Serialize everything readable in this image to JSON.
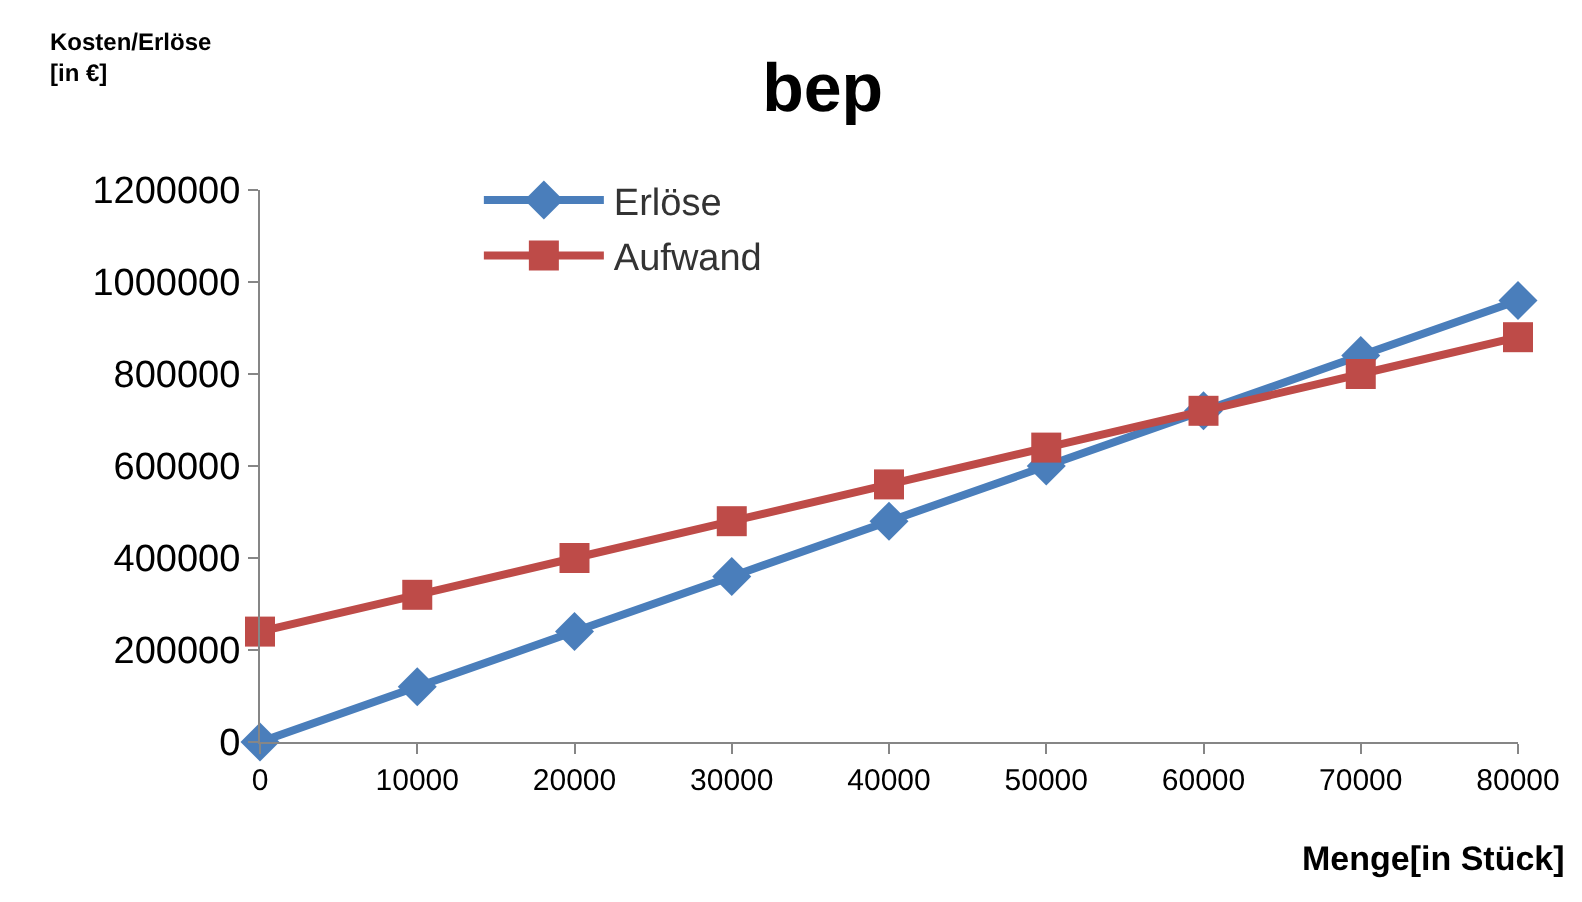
{
  "chart_data": {
    "type": "line",
    "title": "bep",
    "ylabel": "Kosten/Erlöse [in €]",
    "xlabel": "Menge[in Stück]",
    "x": [
      0,
      10000,
      20000,
      30000,
      40000,
      50000,
      60000,
      70000,
      80000
    ],
    "series": [
      {
        "name": "Erlöse",
        "color": "#4a7ebb",
        "marker": "diamond",
        "values": [
          0,
          120000,
          240000,
          360000,
          480000,
          600000,
          720000,
          840000,
          960000
        ]
      },
      {
        "name": "Aufwand",
        "color": "#be4b48",
        "marker": "square",
        "values": [
          240000,
          320000,
          400000,
          480000,
          560000,
          640000,
          720000,
          800000,
          880000
        ]
      }
    ],
    "xlim": [
      0,
      80000
    ],
    "xticks": [
      0,
      10000,
      20000,
      30000,
      40000,
      50000,
      60000,
      70000,
      80000
    ],
    "ylim": [
      0,
      1200000
    ],
    "yticks": [
      0,
      200000,
      400000,
      600000,
      800000,
      1000000,
      1200000
    ],
    "legend": "top left",
    "line_style": "solid"
  }
}
